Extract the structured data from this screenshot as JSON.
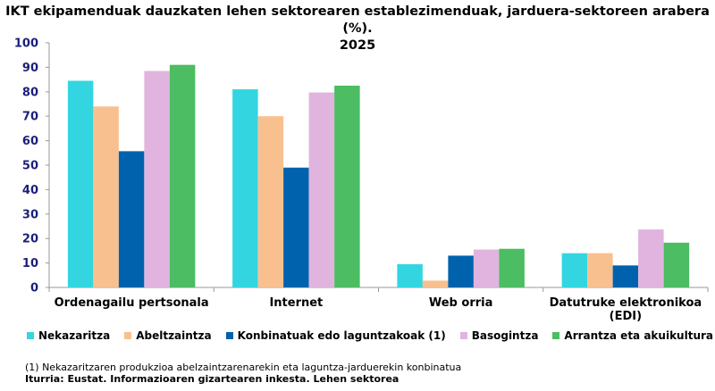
{
  "chart_data": {
    "type": "bar",
    "title_line1": "IKT ekipamenduak dauzkaten lehen sektorearen establezimenduak, jarduera-sektoreen arabera (%).",
    "title_line2": "2025",
    "categories": [
      "Ordenagailu pertsonala",
      "Internet",
      "Web orria",
      "Datutruke elektronikoa (EDI)"
    ],
    "category_lines": [
      [
        "Ordenagailu pertsonala"
      ],
      [
        "Internet"
      ],
      [
        "Web orria"
      ],
      [
        "Datutruke elektronikoa",
        "(EDI)"
      ]
    ],
    "series": [
      {
        "name": "Nekazaritza",
        "color": "#33d6e0",
        "values": [
          84.5,
          81,
          9.5,
          14
        ]
      },
      {
        "name": "Abeltzaintza",
        "color": "#f9c08f",
        "values": [
          74,
          70,
          2.8,
          14
        ]
      },
      {
        "name": "Konbinatuak edo laguntzakoak (1)",
        "color": "#0062ad",
        "values": [
          55.7,
          49,
          13,
          9
        ]
      },
      {
        "name": "Basogintza",
        "color": "#e0b4de",
        "values": [
          88.5,
          79.7,
          15.5,
          23.7
        ]
      },
      {
        "name": "Arrantza eta akuikultura",
        "color": "#4cbd62",
        "values": [
          91,
          82.5,
          15.8,
          18.3
        ]
      }
    ],
    "ylim": [
      0,
      100
    ],
    "yticks": [
      0,
      10,
      20,
      30,
      40,
      50,
      60,
      70,
      80,
      90,
      100
    ],
    "grid": false,
    "legend_position": "bottom"
  },
  "footnote": "(1)  Nekazaritzaren produkzioa abelzaintzarenarekin eta laguntza-jarduerekin konbinatua",
  "source": "Iturria: Eustat. Informazioaren gizartearen inkesta. Lehen sektorea"
}
